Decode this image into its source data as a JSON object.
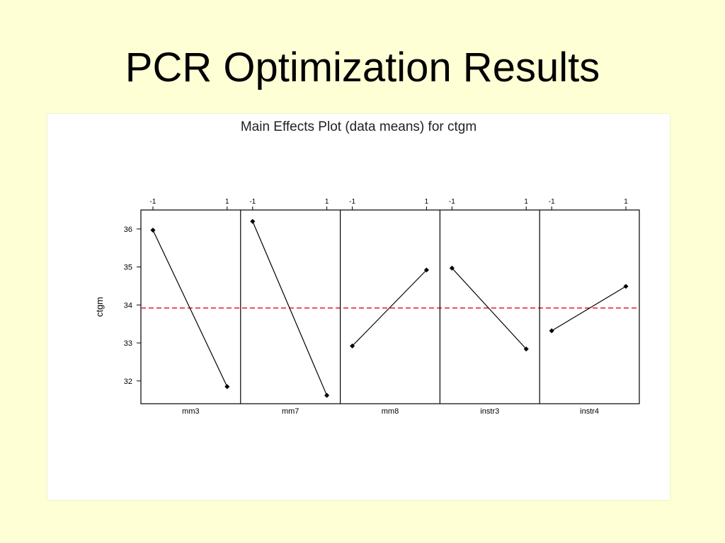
{
  "slide": {
    "title": "PCR Optimization Results"
  },
  "chart_data": {
    "type": "line",
    "title": "Main Effects Plot (data means) for ctgm",
    "ylabel": "ctgm",
    "ylim": [
      31.4,
      36.5
    ],
    "yticks": [
      32,
      33,
      34,
      35,
      36
    ],
    "level_labels": [
      "-1",
      "1"
    ],
    "reference_line": {
      "value": 33.92,
      "color": "#E8161F",
      "style": "dashed"
    },
    "panels": [
      {
        "name": "mm3",
        "values": [
          35.97,
          31.85
        ]
      },
      {
        "name": "mm7",
        "values": [
          36.2,
          31.62
        ]
      },
      {
        "name": "mm8",
        "values": [
          32.92,
          34.92
        ]
      },
      {
        "name": "instr3",
        "values": [
          34.97,
          32.84
        ]
      },
      {
        "name": "instr4",
        "values": [
          33.32,
          34.49
        ]
      }
    ],
    "grid": false,
    "legend": "none"
  }
}
